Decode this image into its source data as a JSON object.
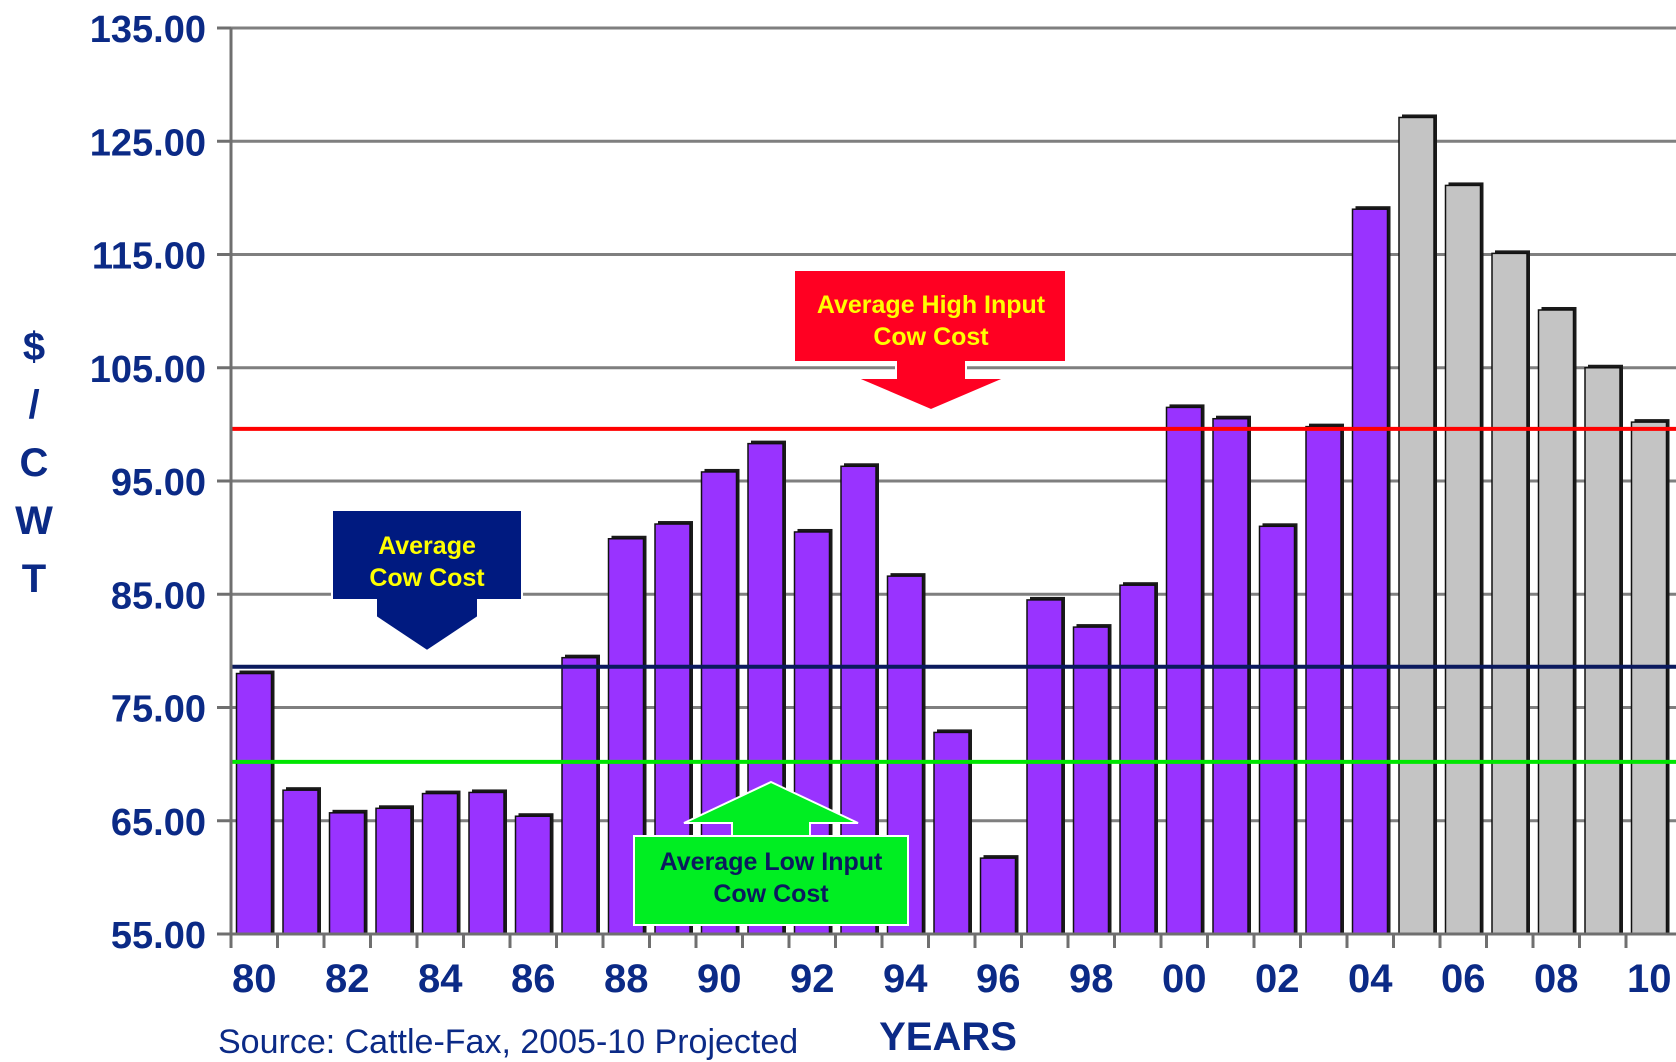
{
  "chart_data": {
    "type": "bar",
    "title": "",
    "xlabel": "YEARS",
    "ylabel": "$/CWT",
    "ylabel_chars": [
      "$",
      "/",
      "C",
      "W",
      "T"
    ],
    "ylim": [
      55,
      135
    ],
    "yticks": [
      "135.00",
      "125.00",
      "115.00",
      "105.00",
      "95.00",
      "85.00",
      "75.00",
      "65.00",
      "55.00"
    ],
    "ytick_values": [
      135,
      125,
      115,
      105,
      95,
      85,
      75,
      65,
      55
    ],
    "grid": true,
    "source": "Source: Cattle-Fax, 2005-10 Projected",
    "categories": [
      "80",
      "81",
      "82",
      "83",
      "84",
      "85",
      "86",
      "87",
      "88",
      "89",
      "90",
      "91",
      "92",
      "93",
      "94",
      "95",
      "96",
      "97",
      "98",
      "99",
      "00",
      "01",
      "02",
      "03",
      "04",
      "05",
      "06",
      "07",
      "08",
      "09",
      "10"
    ],
    "xtick_labels": [
      "80",
      "82",
      "84",
      "86",
      "88",
      "90",
      "92",
      "94",
      "96",
      "98",
      "00",
      "02",
      "04",
      "06",
      "08",
      "10"
    ],
    "values": [
      78,
      67.7,
      65.7,
      66.1,
      67.4,
      67.5,
      65.4,
      79.4,
      89.9,
      91.2,
      95.8,
      98.3,
      90.5,
      96.3,
      86.6,
      72.8,
      61.7,
      84.5,
      82.1,
      85.8,
      101.5,
      100.5,
      91.0,
      99.8,
      119.0,
      127.1,
      121.1,
      115.1,
      110.1,
      105.0,
      100.2
    ],
    "series_kind": [
      "actual",
      "actual",
      "actual",
      "actual",
      "actual",
      "actual",
      "actual",
      "actual",
      "actual",
      "actual",
      "actual",
      "actual",
      "actual",
      "actual",
      "actual",
      "actual",
      "actual",
      "actual",
      "actual",
      "actual",
      "actual",
      "actual",
      "actual",
      "actual",
      "actual",
      "projected",
      "projected",
      "projected",
      "projected",
      "projected",
      "projected"
    ],
    "colors": {
      "actual": "#9933ff",
      "projected": "#c4c4c4",
      "axis_text": "#0b2a86",
      "grid": "#7f7f7f",
      "high_input": "#ff0000",
      "average": "#0b1a5e",
      "low_input": "#00e600"
    },
    "reference_lines": [
      {
        "key": "high",
        "value": 99.6,
        "color": "#ff0000"
      },
      {
        "key": "average",
        "value": 78.6,
        "color": "#0b1a5e"
      },
      {
        "key": "low",
        "value": 70.2,
        "color": "#00e600"
      }
    ],
    "annotations": {
      "high": {
        "line1": "Average High Input",
        "line2": "Cow Cost"
      },
      "average": {
        "line1": "Average",
        "line2": "Cow Cost"
      },
      "low": {
        "line1": "Average Low Input",
        "line2": "Cow Cost"
      }
    }
  }
}
